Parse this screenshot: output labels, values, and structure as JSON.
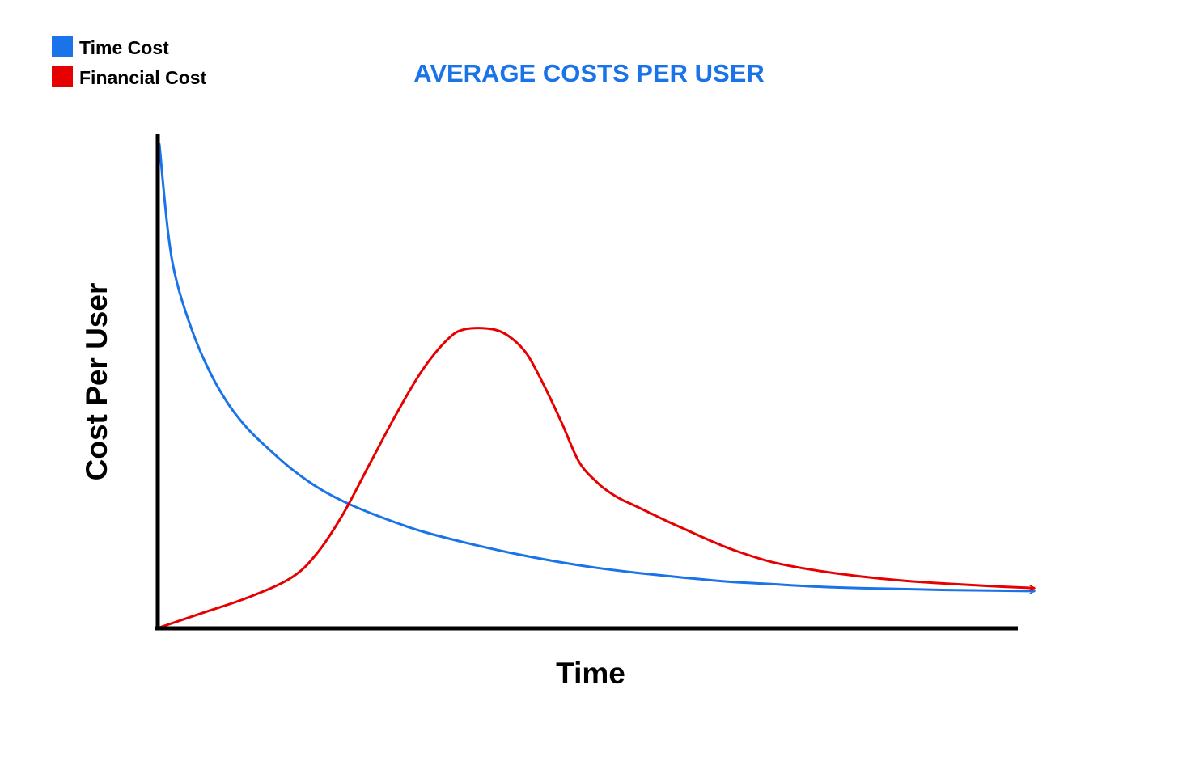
{
  "chart_data": {
    "type": "line",
    "title": "AVERAGE COSTS PER USER",
    "xlabel": "Time",
    "ylabel": "Cost Per User",
    "xlim": [
      0,
      100
    ],
    "ylim": [
      0,
      100
    ],
    "grid": false,
    "legend_position": "top-left",
    "series": [
      {
        "name": "Time Cost",
        "color": "#1a73e8",
        "x": [
          0,
          1,
          2,
          4,
          6,
          8,
          10,
          12,
          15,
          18,
          21,
          24,
          27,
          30,
          35,
          40,
          45,
          50,
          55,
          60,
          65,
          70,
          75,
          80,
          85,
          90,
          95,
          100
        ],
        "y": [
          98,
          80,
          70,
          59,
          51,
          45,
          40.5,
          37,
          32.3,
          28.5,
          25.6,
          23.3,
          21.3,
          19.5,
          17.2,
          15.2,
          13.5,
          12.1,
          11.0,
          10.1,
          9.3,
          8.8,
          8.3,
          8.0,
          7.8,
          7.6,
          7.5,
          7.4
        ]
      },
      {
        "name": "Financial Cost",
        "color": "#e60000",
        "x": [
          0,
          5,
          10,
          15,
          18,
          21,
          24,
          27,
          30,
          33,
          35,
          38,
          40,
          42,
          44,
          46,
          48,
          50,
          51,
          52,
          53,
          54,
          56,
          58,
          60,
          63,
          66,
          70,
          75,
          80,
          85,
          90,
          95,
          100
        ],
        "y": [
          0,
          3,
          6,
          10,
          15,
          23,
          33,
          43,
          52,
          58.5,
          60.5,
          60.5,
          59,
          55.5,
          49,
          41.5,
          33.5,
          29.5,
          28,
          26.8,
          25.8,
          25,
          23.3,
          21.6,
          20,
          17.6,
          15.5,
          13.3,
          11.6,
          10.4,
          9.5,
          8.9,
          8.4,
          8.0
        ]
      }
    ]
  }
}
